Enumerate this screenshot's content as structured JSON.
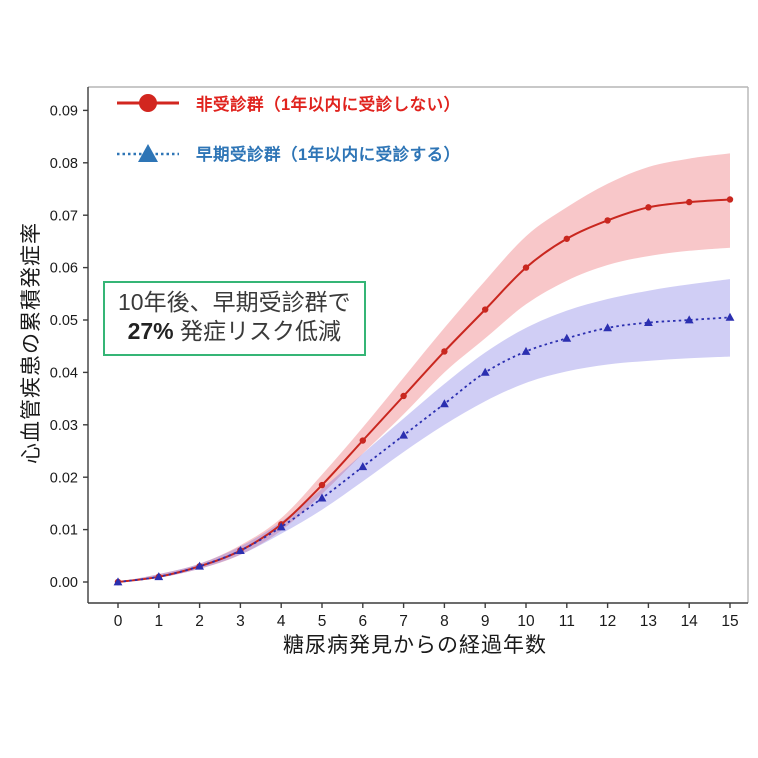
{
  "legend": {
    "series1": {
      "label": "非受診群（1年以内に受診しない）",
      "text_color": "#e0231e",
      "line_color": "#d2261f",
      "marker": "circle",
      "line_style": "solid"
    },
    "series2": {
      "label": "早期受診群（1年以内に受診する）",
      "text_color": "#2e75b6",
      "line_color": "#2e75b6",
      "marker": "triangle",
      "line_style": "dotted"
    }
  },
  "annotation": {
    "line1": "10年後、早期受診群で",
    "highlight": "27%",
    "line2_rest": " 発症リスク低減",
    "border_color": "#35b576"
  },
  "chart_data": {
    "type": "line",
    "title": "",
    "xlabel": "糖尿病発見からの経過年数",
    "ylabel": "心血管疾患の累積発症率",
    "xlim": [
      0,
      15
    ],
    "ylim": [
      0,
      0.09
    ],
    "grid": false,
    "legend_position": "top-left",
    "xticks": [
      0,
      1,
      2,
      3,
      4,
      5,
      6,
      7,
      8,
      9,
      10,
      11,
      12,
      13,
      14,
      15
    ],
    "yticks": [
      "0.00",
      "0.01",
      "0.02",
      "0.03",
      "0.04",
      "0.05",
      "0.06",
      "0.07",
      "0.08",
      "0.09"
    ],
    "x": [
      0,
      1,
      2,
      3,
      4,
      5,
      6,
      7,
      8,
      9,
      10,
      11,
      12,
      13,
      14,
      15
    ],
    "series": [
      {
        "name": "非受診群（1年以内に受診しない）",
        "color": "#c9271f",
        "band_color": "rgba(240,130,135,0.45)",
        "marker": "circle",
        "line_style": "solid",
        "values": [
          0.0,
          0.001,
          0.003,
          0.006,
          0.011,
          0.0185,
          0.027,
          0.0355,
          0.044,
          0.052,
          0.06,
          0.0655,
          0.069,
          0.0715,
          0.0725,
          0.073
        ],
        "band_upper": [
          0.0,
          0.0015,
          0.0035,
          0.007,
          0.0122,
          0.0205,
          0.0295,
          0.039,
          0.0485,
          0.0575,
          0.066,
          0.0715,
          0.076,
          0.0792,
          0.0808,
          0.0818
        ],
        "band_lower": [
          0.0,
          0.0008,
          0.0025,
          0.0052,
          0.0098,
          0.0168,
          0.0245,
          0.032,
          0.04,
          0.0465,
          0.053,
          0.0575,
          0.0605,
          0.0622,
          0.0632,
          0.0638
        ]
      },
      {
        "name": "早期受診群（1年以内に受診する）",
        "color": "#2b2fb0",
        "band_color": "rgba(120,115,225,0.35)",
        "marker": "triangle",
        "line_style": "dotted",
        "values": [
          0.0,
          0.001,
          0.003,
          0.006,
          0.0105,
          0.016,
          0.022,
          0.028,
          0.034,
          0.04,
          0.044,
          0.0465,
          0.0485,
          0.0495,
          0.05,
          0.0505
        ],
        "band_upper": [
          0.0,
          0.0015,
          0.0035,
          0.0068,
          0.0115,
          0.0178,
          0.0245,
          0.0312,
          0.0378,
          0.0438,
          0.0485,
          0.0518,
          0.054,
          0.0556,
          0.0568,
          0.0578
        ],
        "band_lower": [
          0.0,
          0.0008,
          0.0025,
          0.0052,
          0.0092,
          0.0138,
          0.0192,
          0.0248,
          0.03,
          0.0345,
          0.038,
          0.0402,
          0.0415,
          0.0422,
          0.0427,
          0.043
        ]
      }
    ]
  }
}
